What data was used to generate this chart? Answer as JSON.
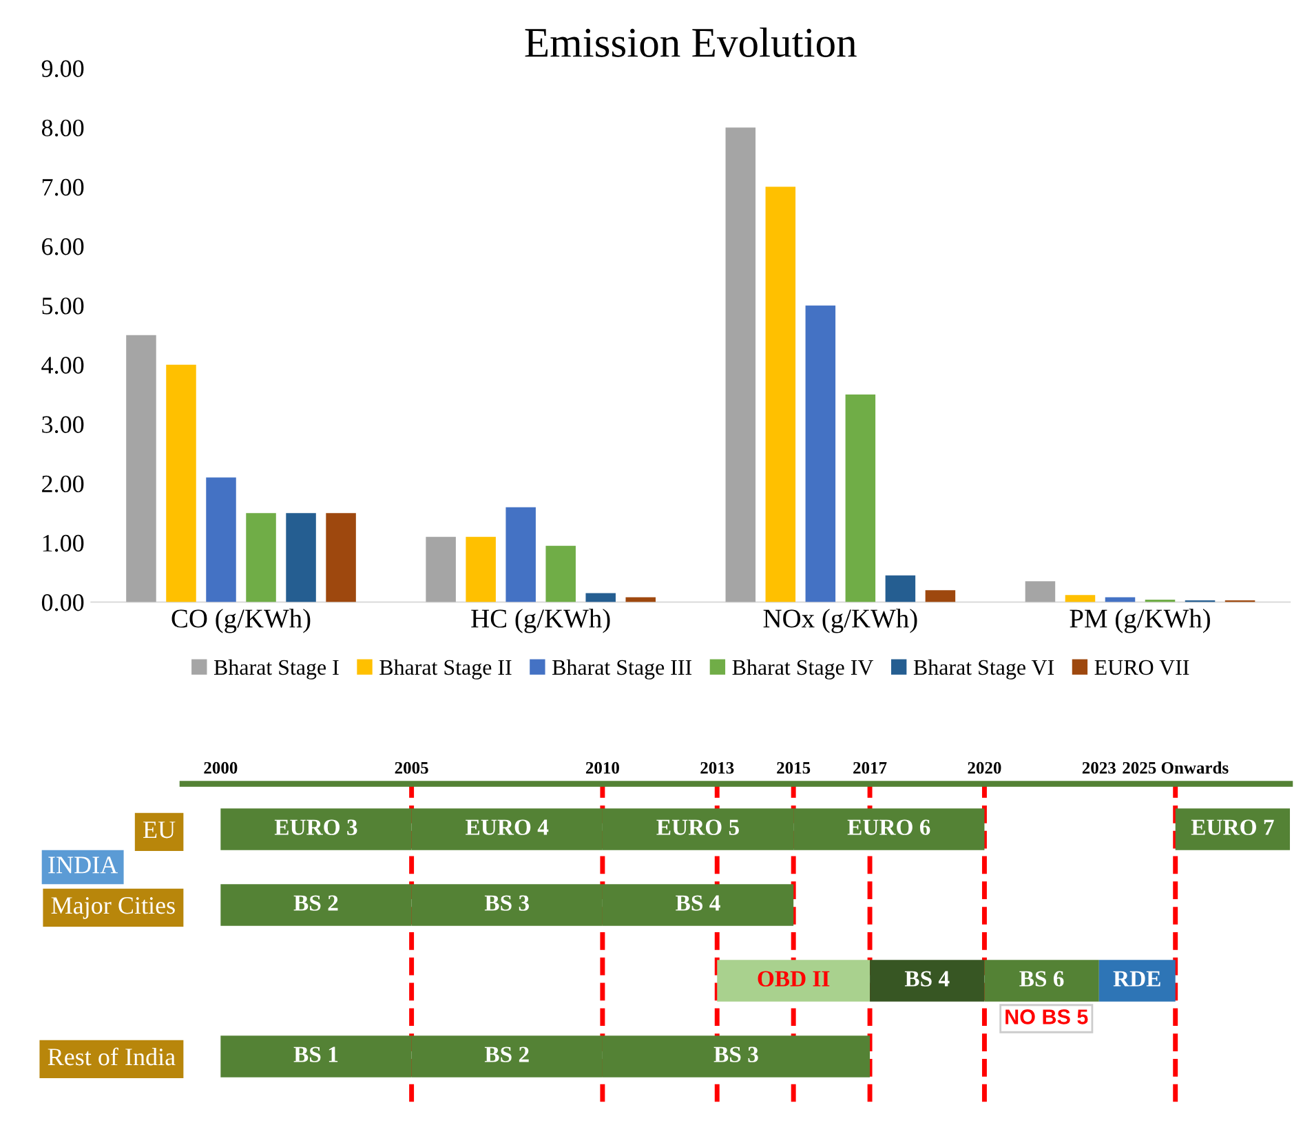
{
  "chart_data": [
    {
      "type": "bar",
      "title": "Emission Evolution",
      "categories": [
        "CO (g/KWh)",
        "HC (g/KWh)",
        "NOx (g/KWh)",
        "PM (g/KWh)"
      ],
      "series": [
        {
          "name": "Bharat Stage I",
          "color": "#a5a5a5",
          "values": [
            4.5,
            1.1,
            8.0,
            0.35
          ]
        },
        {
          "name": "Bharat Stage II",
          "color": "#ffc000",
          "values": [
            4.0,
            1.1,
            7.0,
            0.12
          ]
        },
        {
          "name": "Bharat Stage III",
          "color": "#4472c4",
          "values": [
            2.1,
            1.6,
            5.0,
            0.08
          ]
        },
        {
          "name": "Bharat Stage IV",
          "color": "#70ad47",
          "values": [
            1.5,
            0.95,
            3.5,
            0.04
          ]
        },
        {
          "name": "Bharat Stage VI",
          "color": "#255e91",
          "values": [
            1.5,
            0.15,
            0.45,
            0.03
          ]
        },
        {
          "name": "EURO VII",
          "color": "#9e480e",
          "values": [
            1.5,
            0.08,
            0.2,
            0.03
          ]
        }
      ],
      "ylim": [
        0,
        9
      ],
      "yticks": [
        {
          "value": 0,
          "label": "0.00"
        },
        {
          "value": 1,
          "label": "1.00"
        },
        {
          "value": 2,
          "label": "2.00"
        },
        {
          "value": 3,
          "label": "3.00"
        },
        {
          "value": 4,
          "label": "4.00"
        },
        {
          "value": 5,
          "label": "5.00"
        },
        {
          "value": 6,
          "label": "6.00"
        },
        {
          "value": 7,
          "label": "7.00"
        },
        {
          "value": 8,
          "label": "8.00"
        },
        {
          "value": 9,
          "label": "9.00"
        }
      ],
      "grid": false,
      "legend": "bottom"
    },
    {
      "type": "bar",
      "orientation": "horizontal",
      "categories": [
        "EU",
        "Major Cities",
        null,
        "Rest of India"
      ],
      "series": [
        {
          "colors": [
            "#548235",
            "#548235",
            "#a9d18e",
            "#548235"
          ],
          "base": [
            2000,
            2000,
            2013,
            2000
          ],
          "values": [
            5,
            5,
            4,
            5
          ],
          "value_labels": [
            "EURO 3",
            "BS 2",
            "OBD II",
            "BS 1"
          ]
        },
        {
          "colors": [
            "#548235",
            "#548235",
            "#375623",
            "#548235"
          ],
          "base": [
            2005,
            2005,
            2017,
            2005
          ],
          "values": [
            5,
            5,
            3,
            5
          ],
          "value_labels": [
            "EURO 4",
            "BS 3",
            "BS 4",
            "BS 2"
          ]
        },
        {
          "colors": [
            "#548235",
            "#548235",
            "#548235",
            "#548235"
          ],
          "base": [
            2010,
            2010,
            2020,
            2010
          ],
          "values": [
            5,
            5,
            3,
            7
          ],
          "value_labels": [
            "EURO 5",
            "BS 4",
            "BS 6",
            "BS 3"
          ]
        },
        {
          "colors": [
            "#548235",
            null,
            "#2e75b6",
            null
          ],
          "base": [
            2015,
            null,
            2023,
            null
          ],
          "values": [
            5,
            null,
            2,
            null
          ],
          "value_labels": [
            "EURO 6",
            null,
            "RDE",
            null
          ]
        },
        {
          "colors": [
            "#548235",
            null,
            null,
            null
          ],
          "base": [
            2025,
            null,
            null,
            null
          ],
          "values": [
            3,
            null,
            null,
            null
          ],
          "value_labels": [
            "EURO 7",
            null,
            null,
            null
          ]
        }
      ],
      "xlim": [
        1999,
        2028
      ],
      "xticks": [
        2000,
        2005,
        2010,
        2013,
        2015,
        2017,
        2020,
        2023,
        {
          "value": 2025,
          "label": "2025 Onwards"
        }
      ],
      "ref_lines": [
        {
          "axis": "x",
          "value": 2005,
          "color": "#ff0000",
          "line_style": "dashed"
        },
        {
          "axis": "x",
          "value": 2010,
          "color": "#ff0000",
          "line_style": "dashed"
        },
        {
          "axis": "x",
          "value": 2013,
          "color": "#ff0000",
          "line_style": "dashed"
        },
        {
          "axis": "x",
          "value": 2015,
          "color": "#ff0000",
          "line_style": "dashed"
        },
        {
          "axis": "x",
          "value": 2017,
          "color": "#ff0000",
          "line_style": "dashed"
        },
        {
          "axis": "x",
          "value": 2020,
          "color": "#ff0000",
          "line_style": "dashed"
        },
        {
          "axis": "x",
          "value": 2025,
          "color": "#ff0000",
          "line_style": "dashed"
        }
      ],
      "annotations": [
        "INDIA",
        "NO BS 5"
      ]
    }
  ]
}
